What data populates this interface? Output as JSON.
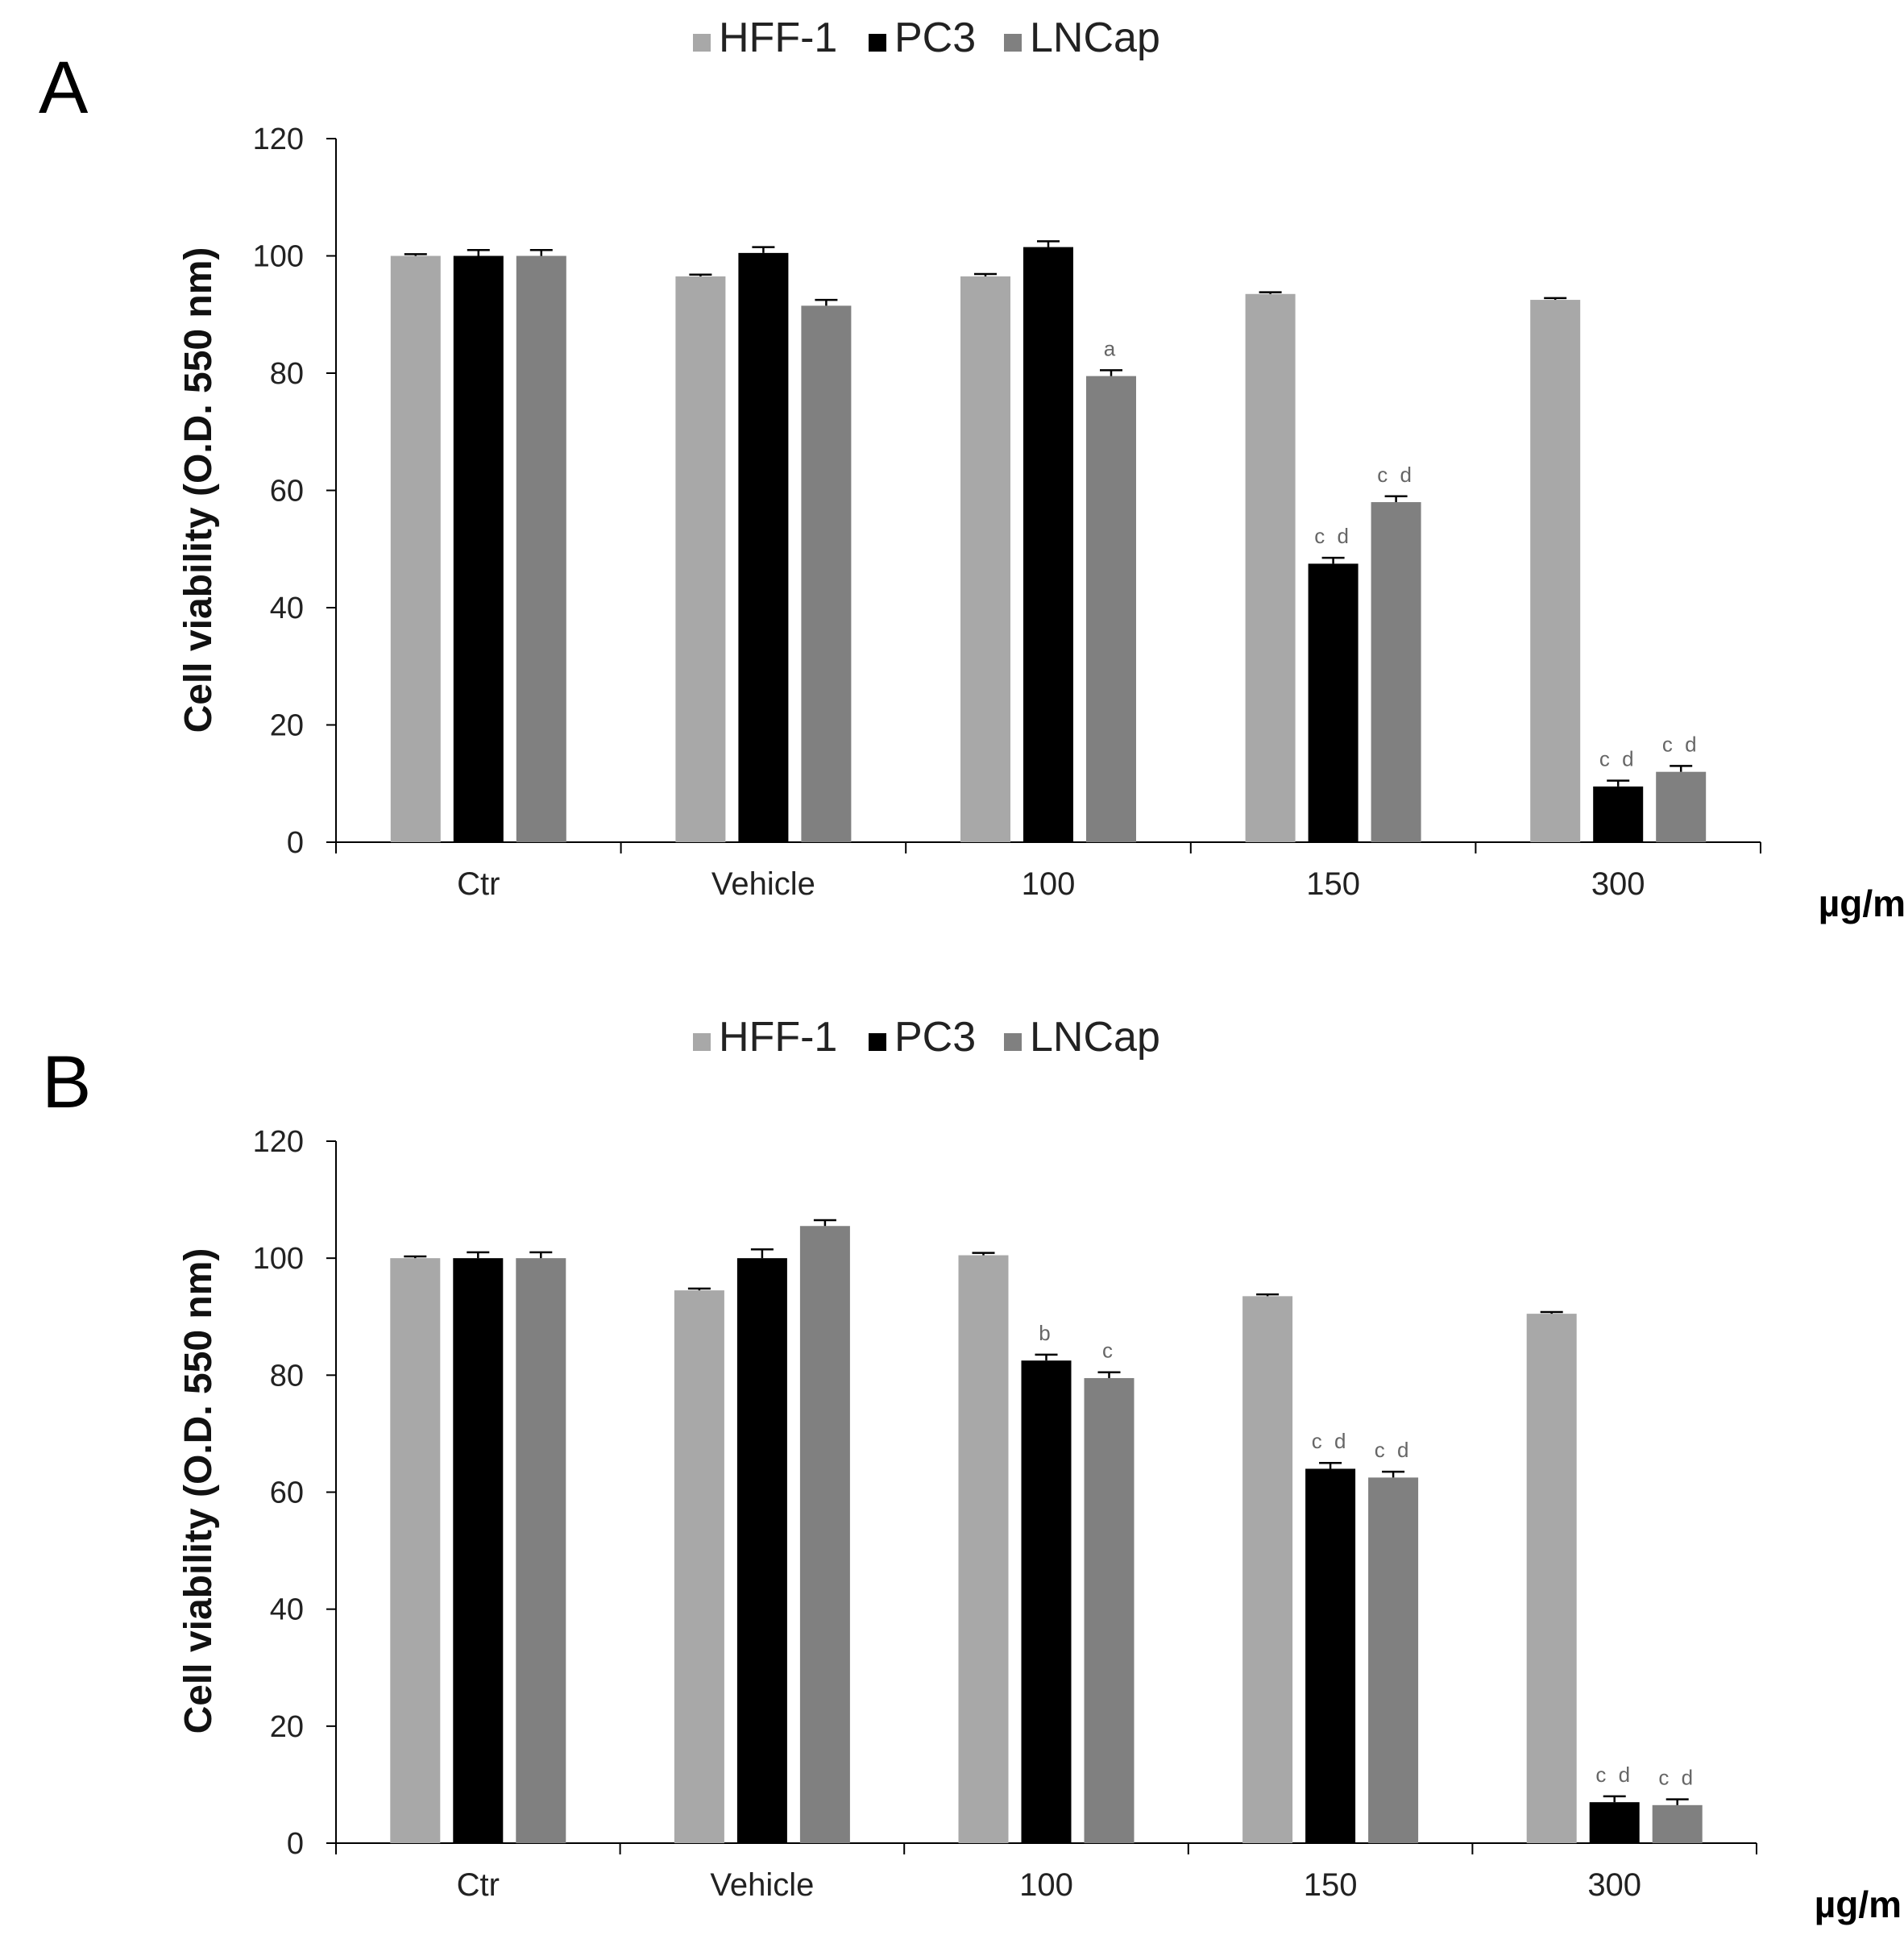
{
  "chart_data": [
    {
      "type": "bar",
      "panel": "A",
      "categories": [
        "Ctr",
        "Vehicle",
        "100",
        "150",
        "300"
      ],
      "x_unit": "µg/mL",
      "ylabel": "Cell viability (O.D. 550 nm)",
      "ylim": [
        0,
        120
      ],
      "yticks": [
        0,
        20,
        40,
        60,
        80,
        100,
        120
      ],
      "legend_position": "top-center",
      "colors": {
        "HFF-1": "#a8a8a8",
        "PC3": "#000000",
        "LNCap": "#808080"
      },
      "series": [
        {
          "name": "HFF-1",
          "values": [
            100,
            96.5,
            96.5,
            93.5,
            92.5
          ],
          "errors": [
            0.3,
            0.3,
            0.4,
            0.3,
            0.3
          ],
          "annotations": [
            "",
            "",
            "",
            "",
            ""
          ]
        },
        {
          "name": "PC3",
          "values": [
            100,
            100.5,
            101.5,
            47.5,
            9.5
          ],
          "errors": [
            1.0,
            1.0,
            1.0,
            1.0,
            1.0
          ],
          "annotations": [
            "",
            "",
            "",
            "c d",
            "c d"
          ]
        },
        {
          "name": "LNCap",
          "values": [
            100,
            91.5,
            79.5,
            58,
            12
          ],
          "errors": [
            1.0,
            1.0,
            1.0,
            1.0,
            1.0
          ],
          "annotations": [
            "",
            "",
            "a",
            "c d",
            "c d"
          ]
        }
      ]
    },
    {
      "type": "bar",
      "panel": "B",
      "categories": [
        "Ctr",
        "Vehicle",
        "100",
        "150",
        "300"
      ],
      "x_unit": "µg/mL",
      "ylabel": "Cell viability (O.D. 550 nm)",
      "ylim": [
        0,
        120
      ],
      "yticks": [
        0,
        20,
        40,
        60,
        80,
        100,
        120
      ],
      "legend_position": "top-center",
      "colors": {
        "HFF-1": "#a8a8a8",
        "PC3": "#000000",
        "LNCap": "#808080"
      },
      "series": [
        {
          "name": "HFF-1",
          "values": [
            100,
            94.5,
            100.5,
            93.5,
            90.5
          ],
          "errors": [
            0.3,
            0.3,
            0.4,
            0.3,
            0.3
          ],
          "annotations": [
            "",
            "",
            "",
            "",
            ""
          ]
        },
        {
          "name": "PC3",
          "values": [
            100,
            100,
            82.5,
            64,
            7
          ],
          "errors": [
            1.0,
            1.5,
            1.0,
            1.0,
            1.0
          ],
          "annotations": [
            "",
            "",
            "b",
            "c d",
            "c d"
          ]
        },
        {
          "name": "LNCap",
          "values": [
            100,
            105.5,
            79.5,
            62.5,
            6.5
          ],
          "errors": [
            1.0,
            1.0,
            1.0,
            1.0,
            1.0
          ],
          "annotations": [
            "",
            "",
            "c",
            "c d",
            "c d"
          ]
        }
      ]
    }
  ]
}
